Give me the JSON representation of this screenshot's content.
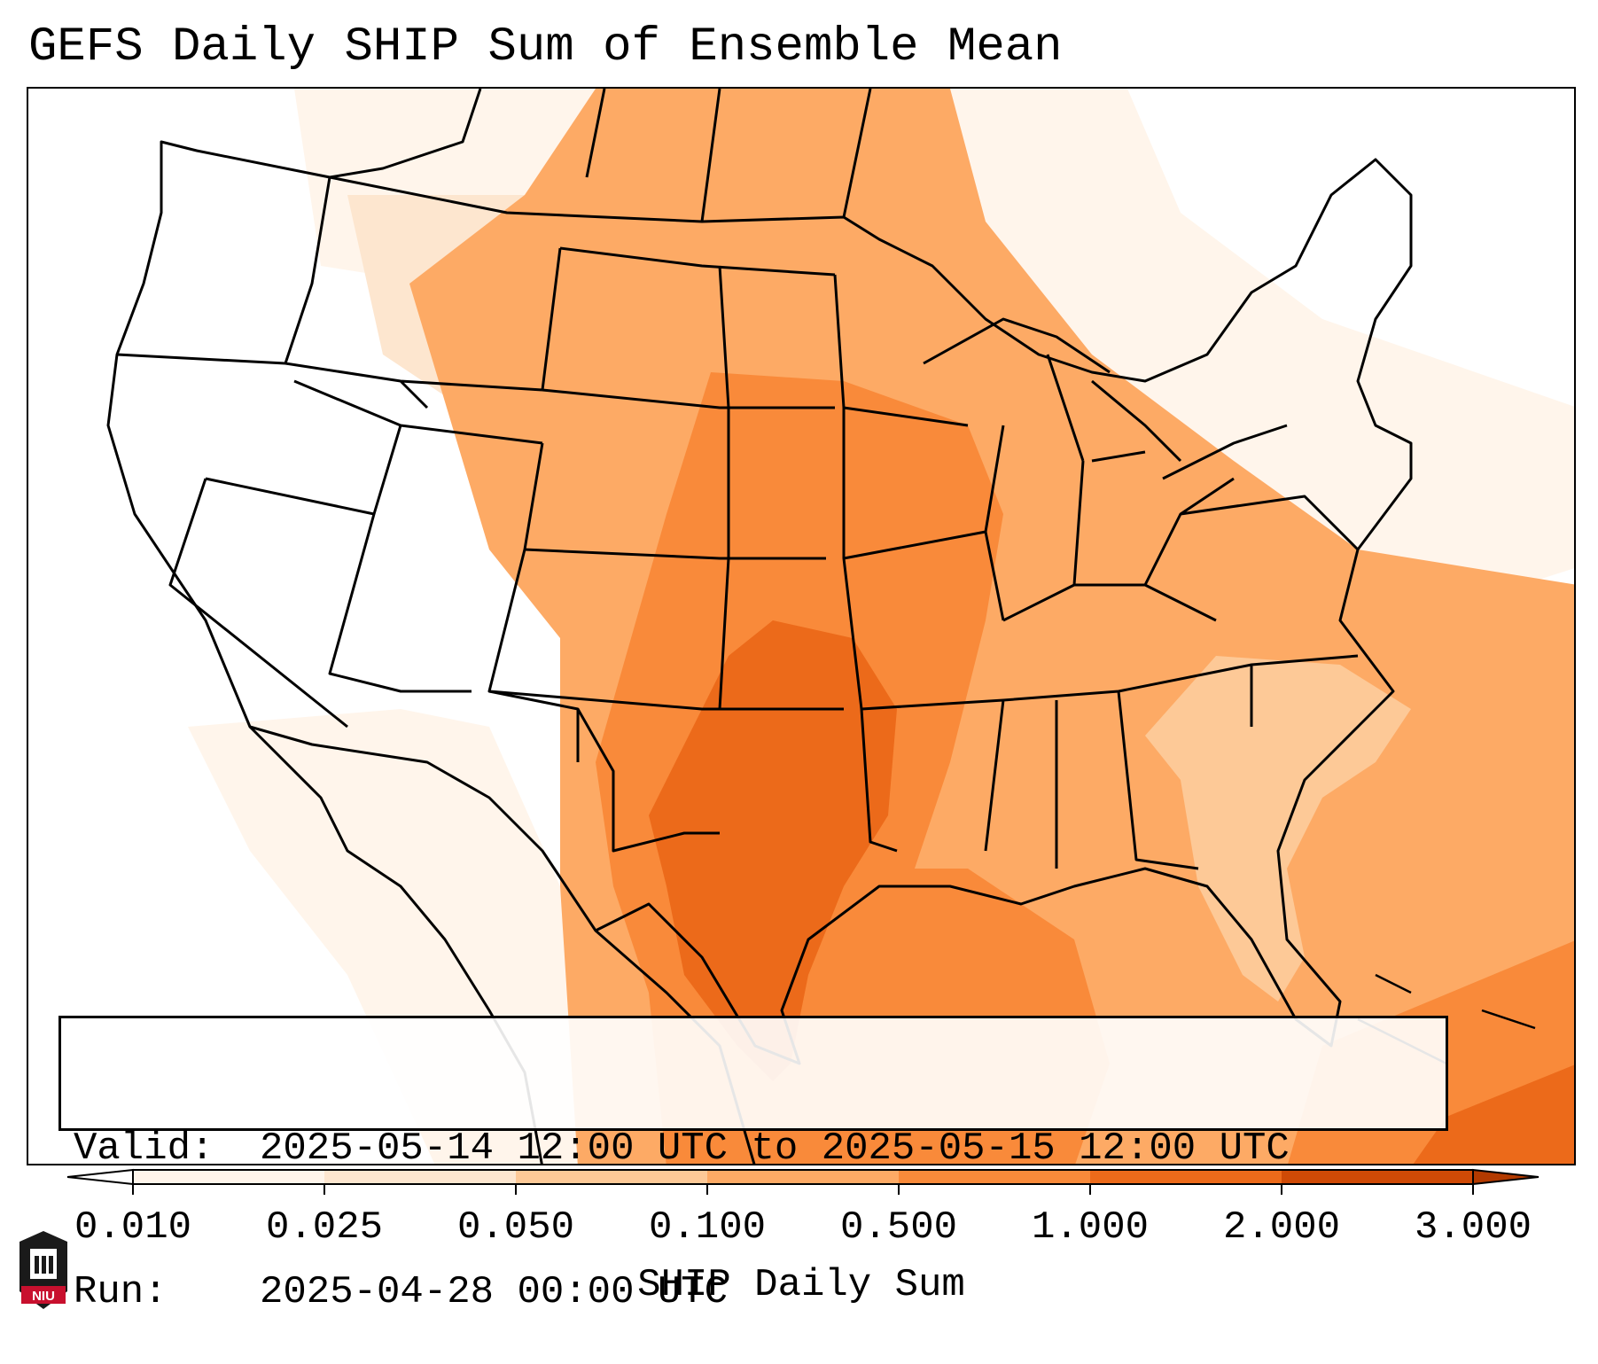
{
  "title": "GEFS Daily SHIP Sum of Ensemble Mean",
  "info": {
    "valid_key": "Valid:",
    "valid_value": "2025-05-14 12:00 UTC to 2025-05-15 12:00 UTC",
    "run_key": "Run:",
    "run_value": "2025-04-28 00:00 UTC"
  },
  "colorbar": {
    "label": "SHIP Daily Sum",
    "ticks": [
      "0.010",
      "0.025",
      "0.050",
      "0.100",
      "0.500",
      "1.000",
      "2.000",
      "3.000"
    ],
    "colors": [
      "#fff5eb",
      "#fde6cf",
      "#fdc997",
      "#fdaa65",
      "#f98a3a",
      "#ec6a1a",
      "#cf4a06"
    ],
    "extend": "both"
  },
  "logo": {
    "text": "NIU",
    "icon": "niu-logo-icon",
    "colors": {
      "dark": "#1a1a1a",
      "red": "#c8102e"
    }
  },
  "map": {
    "projection": "lambert-conformal",
    "region": "CONUS",
    "palette": {
      "very_light": "#fff5eb",
      "light": "#fde6cf",
      "tan": "#fdc997",
      "light_orange": "#fdaa65",
      "orange": "#f98a3a",
      "dark_orange": "#ec6a1a"
    }
  }
}
